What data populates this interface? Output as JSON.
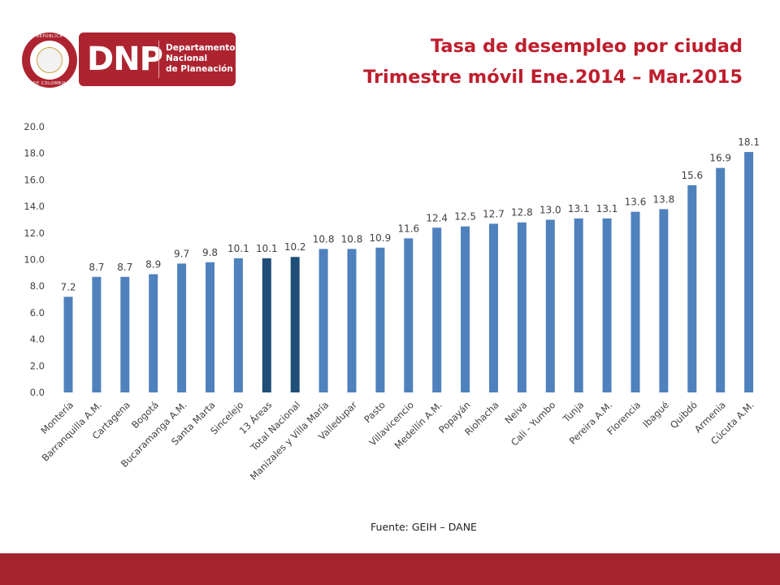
{
  "logo": {
    "seal_top_text": "REPÚBLICA",
    "seal_bottom_text": "DE COLOMBIA",
    "letters": "DNP",
    "name_lines": [
      "Departamento",
      "Nacional",
      "de Planeación"
    ]
  },
  "title": {
    "line1": "Tasa de desempleo por ciudad",
    "line2": "Trimestre móvil Ene.2014 – Mar.2015"
  },
  "source": "Fuente: GEIH – DANE",
  "colors": {
    "bar": "#4f81bd",
    "bar_highlight": "#1f4e79",
    "title": "#be1e2d",
    "footer": "#a42530",
    "brand": "#ad2430"
  },
  "chart_data": {
    "type": "bar",
    "title": "",
    "xlabel": "",
    "ylabel": "",
    "ylim": [
      0,
      20
    ],
    "yticks": [
      "0.0",
      "2.0",
      "4.0",
      "6.0",
      "8.0",
      "10.0",
      "12.0",
      "14.0",
      "16.0",
      "18.0",
      "20.0"
    ],
    "grid": false,
    "categories": [
      "Montería",
      "Barranquilla A.M.",
      "Cartagena",
      "Bogotá",
      "Bucaramanga A.M.",
      "Santa Marta",
      "Sincelejo",
      "13 Áreas",
      "Total Nacional",
      "Manizales y Villa María",
      "Valledupar",
      "Pasto",
      "Villavicencio",
      "Medellín A.M.",
      "Popayán",
      "Riohacha",
      "Neiva",
      "Cali - Yumbo",
      "Tunja",
      "Pereira A.M.",
      "Florencia",
      "Ibagué",
      "Quibdó",
      "Armenia",
      "Cúcuta A.M."
    ],
    "values": [
      7.2,
      8.7,
      8.7,
      8.9,
      9.7,
      9.8,
      10.1,
      10.1,
      10.2,
      10.8,
      10.8,
      10.9,
      11.6,
      12.4,
      12.5,
      12.7,
      12.8,
      13.0,
      13.1,
      13.1,
      13.6,
      13.8,
      15.6,
      16.9,
      18.1
    ],
    "data_labels": [
      "7.2",
      "8.7",
      "8.7",
      "8.9",
      "9.7",
      "9.8",
      "10.1",
      "10.1",
      "10.2",
      "10.8",
      "10.8",
      "10.9",
      "11.6",
      "12.4",
      "12.5",
      "12.7",
      "12.8",
      "13.0",
      "13.1",
      "13.1",
      "13.6",
      "13.8",
      "15.6",
      "16.9",
      "18.1"
    ],
    "highlighted": [
      "13 Áreas",
      "Total Nacional"
    ]
  }
}
